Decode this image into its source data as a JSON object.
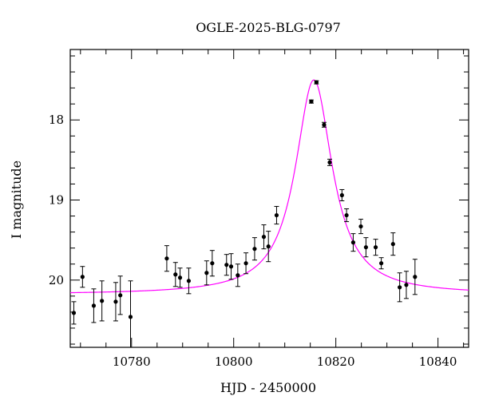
{
  "chart_data": {
    "type": "scatter",
    "title": "OGLE-2025-BLG-0797",
    "xlabel": "HJD - 2450000",
    "ylabel": "I magnitude",
    "xlim": [
      10768,
      10846
    ],
    "ylim": [
      20.84,
      17.12
    ],
    "y_inverted": true,
    "grid": false,
    "legend": "none",
    "x_ticks": [
      {
        "value": 10780,
        "label": "10780"
      },
      {
        "value": 10800,
        "label": "10800"
      },
      {
        "value": 10820,
        "label": "10820"
      },
      {
        "value": 10840,
        "label": "10840"
      }
    ],
    "y_ticks": [
      {
        "value": 18,
        "label": "18"
      },
      {
        "value": 19,
        "label": "19"
      },
      {
        "value": 20,
        "label": "20"
      }
    ],
    "colors": {
      "points": "#000000",
      "model": "#ff00ff",
      "frame": "#000000"
    },
    "series": [
      {
        "kind": "points",
        "x": [
          10768.7,
          10770.4,
          10772.6,
          10774.2,
          10776.9,
          10777.8,
          10779.8,
          10786.9,
          10788.6,
          10789.5,
          10791.2,
          10794.7,
          10795.8,
          10798.6,
          10799.5,
          10800.8,
          10802.4,
          10804.1,
          10805.9,
          10806.8,
          10808.4,
          10815.2,
          10816.2,
          10817.7,
          10818.8,
          10821.2,
          10822.1,
          10823.4,
          10824.9,
          10825.9,
          10827.8,
          10828.9,
          10831.2,
          10832.5,
          10833.8,
          10835.5
        ],
        "y": [
          20.41,
          19.96,
          20.32,
          20.26,
          20.27,
          20.19,
          20.46,
          19.73,
          19.93,
          19.97,
          20.01,
          19.91,
          19.79,
          19.81,
          19.83,
          19.94,
          19.79,
          19.61,
          19.46,
          19.58,
          19.19,
          17.77,
          17.53,
          18.06,
          18.53,
          18.94,
          19.19,
          19.53,
          19.33,
          19.59,
          19.59,
          19.79,
          19.55,
          20.09,
          20.06,
          19.96
        ],
        "err": [
          0.14,
          0.13,
          0.21,
          0.25,
          0.24,
          0.24,
          0.45,
          0.16,
          0.15,
          0.12,
          0.16,
          0.15,
          0.16,
          0.13,
          0.16,
          0.14,
          0.13,
          0.14,
          0.15,
          0.19,
          0.11,
          0.02,
          0.02,
          0.03,
          0.04,
          0.07,
          0.08,
          0.11,
          0.09,
          0.12,
          0.1,
          0.07,
          0.14,
          0.18,
          0.17,
          0.22
        ]
      },
      {
        "kind": "model",
        "t0": 10815.7,
        "base_mag": 20.18,
        "peak_mag": 17.5,
        "width_days": 4.4,
        "x_range": [
          10768,
          10846
        ]
      }
    ]
  }
}
